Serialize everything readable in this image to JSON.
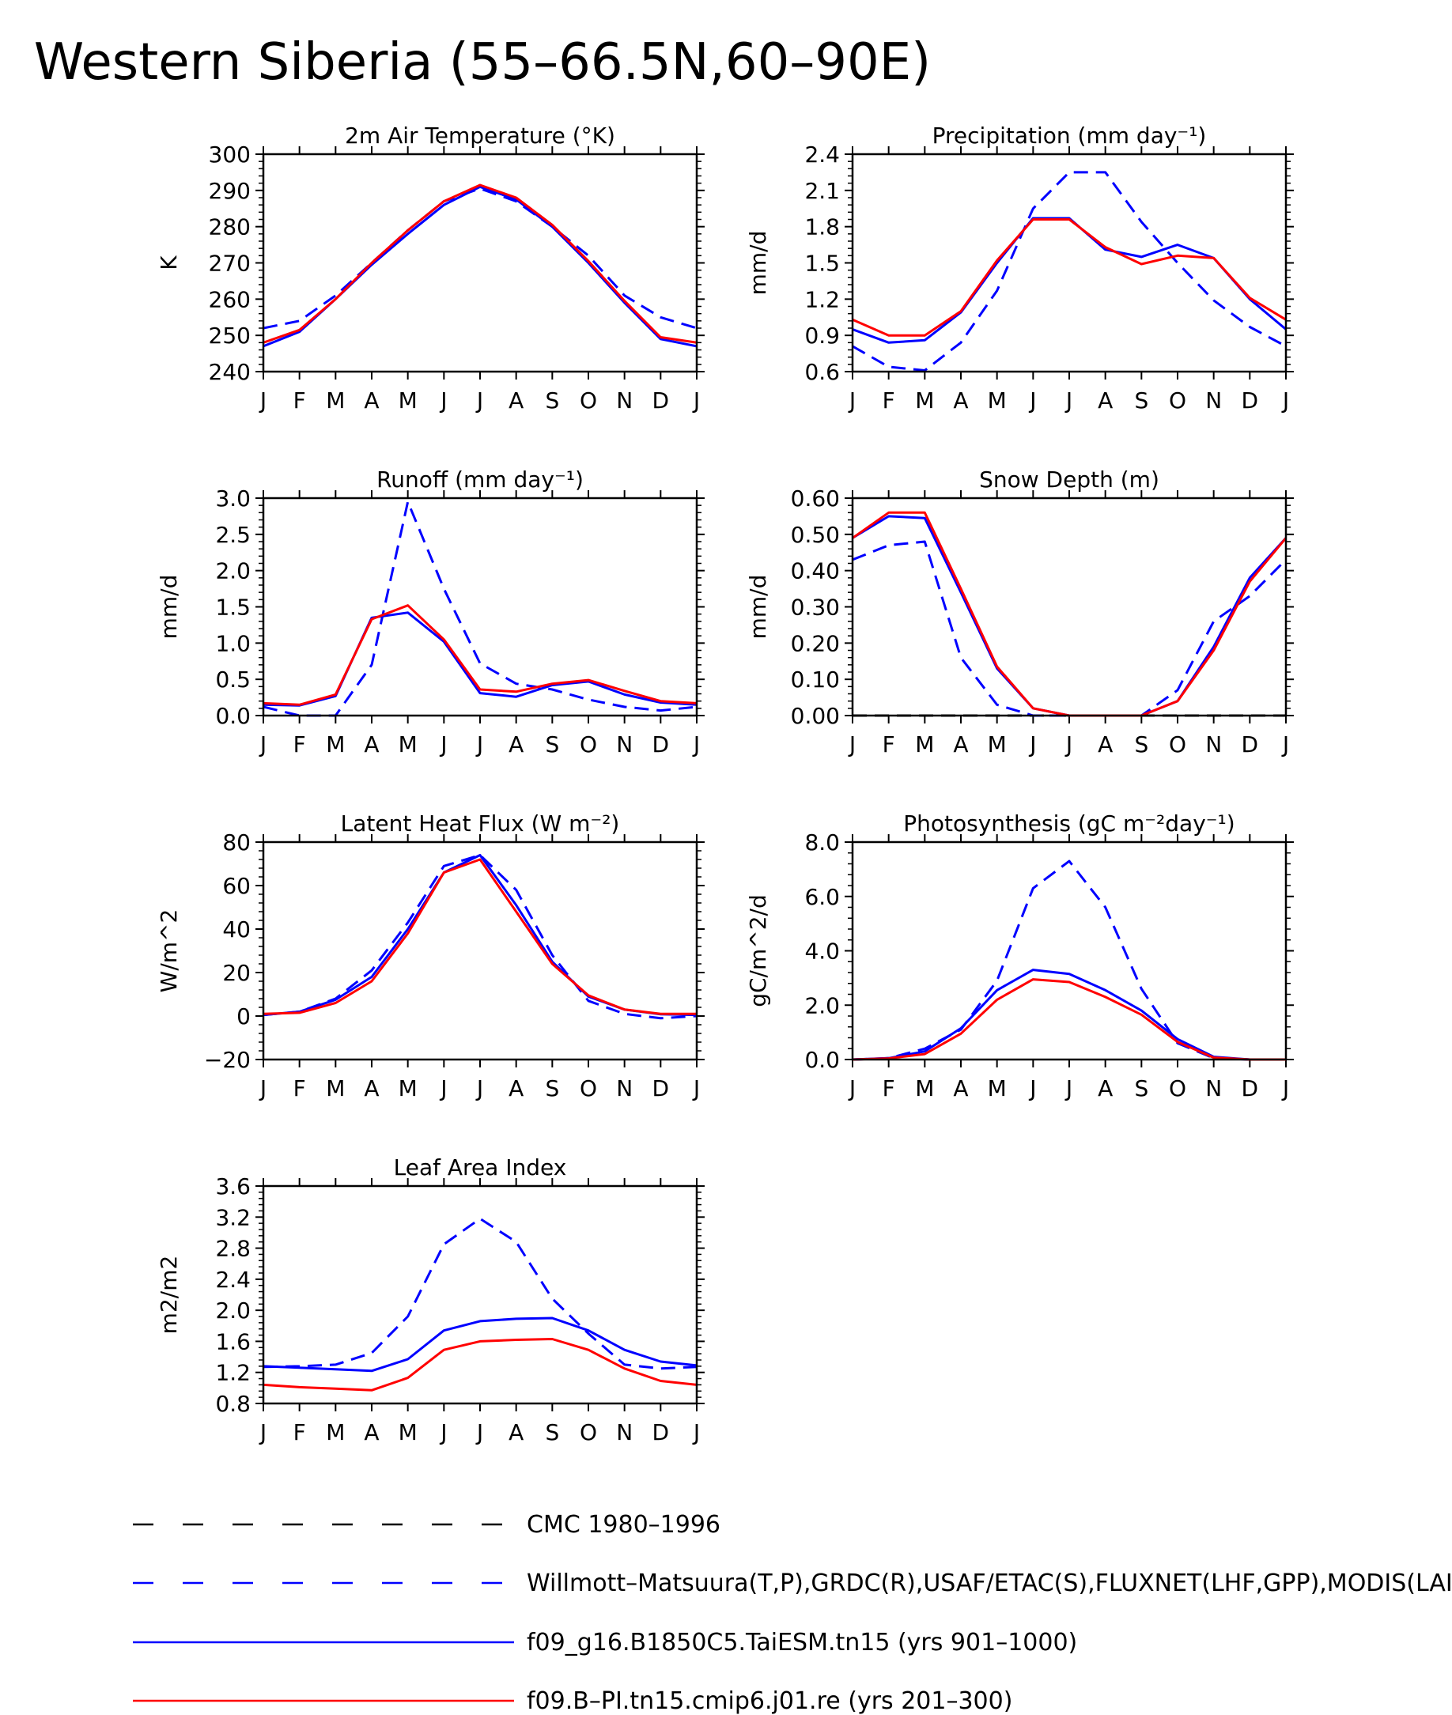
{
  "title": "Western Siberia (55–66.5N,60–90E)",
  "months": [
    "J",
    "F",
    "M",
    "A",
    "M",
    "J",
    "J",
    "A",
    "S",
    "O",
    "N",
    "D",
    "J"
  ],
  "series_styles": [
    {
      "name": "CMC 1980–1996",
      "color": "#000000",
      "dash": true
    },
    {
      "name": "Willmott–Matsuura(T,P),GRDC(R),USAF/ETAC(S),FLUXNET(LHF,GPP),MODIS(LAI)",
      "color": "#0000ff",
      "dash": true
    },
    {
      "name": "f09_g16.B1850C5.TaiESM.tn15 (yrs 901–1000)",
      "color": "#0000ff",
      "dash": false
    },
    {
      "name": "f09.B–PI.tn15.cmip6.j01.re (yrs 201–300)",
      "color": "#ff0000",
      "dash": false
    }
  ],
  "legend": [
    {
      "label": "CMC 1980–1996",
      "color": "#000000",
      "dash": true
    },
    {
      "label": "Willmott–Matsuura(T,P),GRDC(R),USAF/ETAC(S),FLUXNET(LHF,GPP),MODIS(LAI)",
      "color": "#0000ff",
      "dash": true
    },
    {
      "label": "f09_g16.B1850C5.TaiESM.tn15 (yrs 901–1000)",
      "color": "#0000ff",
      "dash": false
    },
    {
      "label": "f09.B–PI.tn15.cmip6.j01.re (yrs 201–300)",
      "color": "#ff0000",
      "dash": false
    }
  ],
  "chart_data": [
    {
      "type": "line",
      "title": "2m Air Temperature (°K)",
      "ylabel": "K",
      "ylim": [
        240,
        300
      ],
      "yticks": [
        240,
        250,
        260,
        270,
        280,
        290,
        300
      ],
      "ytick_labels": [
        "240",
        "250",
        "260",
        "270",
        "280",
        "290",
        "300"
      ],
      "x": [
        "J",
        "F",
        "M",
        "A",
        "M",
        "J",
        "J",
        "A",
        "S",
        "O",
        "N",
        "D",
        "J"
      ],
      "series": [
        {
          "style": 1,
          "values": [
            252,
            254,
            261,
            270,
            279,
            287,
            290.5,
            287,
            280,
            272,
            261,
            255,
            252
          ]
        },
        {
          "style": 2,
          "values": [
            247,
            251,
            260,
            269.5,
            278,
            286,
            291,
            287.5,
            280,
            270,
            259,
            249,
            247
          ]
        },
        {
          "style": 3,
          "values": [
            248,
            251.5,
            260,
            270,
            279,
            287,
            291.5,
            288,
            280.5,
            270.5,
            259.5,
            249.5,
            248
          ]
        }
      ]
    },
    {
      "type": "line",
      "title": "Precipitation (mm day⁻¹)",
      "ylabel": "mm/d",
      "ylim": [
        0.6,
        2.4
      ],
      "yticks": [
        0.6,
        0.9,
        1.2,
        1.5,
        1.8,
        2.1,
        2.4
      ],
      "ytick_labels": [
        "0.6",
        "0.9",
        "1.2",
        "1.5",
        "1.8",
        "2.1",
        "2.4"
      ],
      "x": [
        "J",
        "F",
        "M",
        "A",
        "M",
        "J",
        "J",
        "A",
        "S",
        "O",
        "N",
        "D",
        "J"
      ],
      "series": [
        {
          "style": 1,
          "values": [
            0.81,
            0.64,
            0.61,
            0.84,
            1.27,
            1.95,
            2.25,
            2.25,
            1.84,
            1.5,
            1.19,
            0.97,
            0.81
          ]
        },
        {
          "style": 2,
          "values": [
            0.95,
            0.84,
            0.86,
            1.09,
            1.5,
            1.87,
            1.87,
            1.61,
            1.55,
            1.65,
            1.54,
            1.2,
            0.95
          ]
        },
        {
          "style": 3,
          "values": [
            1.03,
            0.9,
            0.9,
            1.1,
            1.52,
            1.86,
            1.86,
            1.63,
            1.49,
            1.56,
            1.54,
            1.21,
            1.03
          ]
        }
      ]
    },
    {
      "type": "line",
      "title": "Runoff (mm day⁻¹)",
      "ylabel": "mm/d",
      "ylim": [
        0,
        3
      ],
      "yticks": [
        0,
        0.5,
        1,
        1.5,
        2,
        2.5,
        3
      ],
      "ytick_labels": [
        "0.0",
        "0.5",
        "1.0",
        "1.5",
        "2.0",
        "2.5",
        "3.0"
      ],
      "x": [
        "J",
        "F",
        "M",
        "A",
        "M",
        "J",
        "J",
        "A",
        "S",
        "O",
        "N",
        "D",
        "J"
      ],
      "series": [
        {
          "style": 1,
          "values": [
            0.12,
            0.0,
            0.0,
            0.7,
            2.95,
            1.75,
            0.72,
            0.44,
            0.36,
            0.22,
            0.12,
            0.07,
            0.12
          ]
        },
        {
          "style": 2,
          "values": [
            0.15,
            0.14,
            0.27,
            1.35,
            1.42,
            1.02,
            0.31,
            0.26,
            0.42,
            0.47,
            0.29,
            0.18,
            0.15
          ]
        },
        {
          "style": 3,
          "values": [
            0.17,
            0.15,
            0.29,
            1.33,
            1.52,
            1.05,
            0.36,
            0.33,
            0.44,
            0.49,
            0.34,
            0.2,
            0.17
          ]
        }
      ]
    },
    {
      "type": "line",
      "title": "Snow Depth (m)",
      "ylabel": "mm/d",
      "ylim": [
        0,
        0.6
      ],
      "yticks": [
        0,
        0.1,
        0.2,
        0.3,
        0.4,
        0.5,
        0.6
      ],
      "ytick_labels": [
        "0.00",
        "0.10",
        "0.20",
        "0.30",
        "0.40",
        "0.50",
        "0.60"
      ],
      "x": [
        "J",
        "F",
        "M",
        "A",
        "M",
        "J",
        "J",
        "A",
        "S",
        "O",
        "N",
        "D",
        "J"
      ],
      "series": [
        {
          "style": 0,
          "values": [
            0,
            0,
            0,
            0,
            0,
            0,
            0,
            0,
            0,
            0,
            0,
            0,
            0
          ]
        },
        {
          "style": 1,
          "values": [
            0.43,
            0.47,
            0.48,
            0.16,
            0.03,
            0.0,
            0.0,
            0.0,
            0.0,
            0.07,
            0.26,
            0.33,
            0.43
          ]
        },
        {
          "style": 2,
          "values": [
            0.49,
            0.55,
            0.545,
            0.34,
            0.13,
            0.02,
            0.0,
            0.0,
            0.0,
            0.04,
            0.19,
            0.38,
            0.49
          ]
        },
        {
          "style": 3,
          "values": [
            0.49,
            0.56,
            0.56,
            0.35,
            0.135,
            0.02,
            0.0,
            0.0,
            0.0,
            0.04,
            0.18,
            0.37,
            0.49
          ]
        }
      ]
    },
    {
      "type": "line",
      "title": "Latent Heat Flux (W m⁻²)",
      "ylabel": "W/m^2",
      "ylim": [
        -20,
        80
      ],
      "yticks": [
        -20,
        0,
        20,
        40,
        60,
        80
      ],
      "ytick_labels": [
        "−20",
        "0",
        "20",
        "40",
        "60",
        "80"
      ],
      "x": [
        "J",
        "F",
        "M",
        "A",
        "M",
        "J",
        "J",
        "A",
        "S",
        "O",
        "N",
        "D",
        "J"
      ],
      "series": [
        {
          "style": 1,
          "values": [
            0.5,
            2,
            8,
            21,
            43,
            69,
            74,
            58,
            28,
            7,
            1,
            -1,
            0
          ]
        },
        {
          "style": 2,
          "values": [
            0.5,
            2,
            7.5,
            18,
            40,
            66,
            74,
            51,
            25,
            9,
            3,
            0.8,
            0.5
          ]
        },
        {
          "style": 3,
          "values": [
            1,
            1.5,
            6,
            16,
            38,
            66,
            72,
            48,
            24,
            9.5,
            3,
            1,
            1
          ]
        }
      ]
    },
    {
      "type": "line",
      "title": "Photosynthesis (gC m⁻²day⁻¹)",
      "ylabel": "gC/m^2/d",
      "ylim": [
        0,
        8
      ],
      "yticks": [
        0,
        2,
        4,
        6,
        8
      ],
      "ytick_labels": [
        "0.0",
        "2.0",
        "4.0",
        "6.0",
        "8.0"
      ],
      "x": [
        "J",
        "F",
        "M",
        "A",
        "M",
        "J",
        "J",
        "A",
        "S",
        "O",
        "N",
        "D",
        "J"
      ],
      "series": [
        {
          "style": 1,
          "values": [
            0,
            0.05,
            0.4,
            1.1,
            2.9,
            6.3,
            7.3,
            5.6,
            2.6,
            0.6,
            0.05,
            0,
            0
          ]
        },
        {
          "style": 2,
          "values": [
            0,
            0.05,
            0.3,
            1.15,
            2.55,
            3.3,
            3.15,
            2.55,
            1.8,
            0.75,
            0.1,
            0,
            0
          ]
        },
        {
          "style": 3,
          "values": [
            0,
            0.04,
            0.2,
            0.95,
            2.2,
            2.95,
            2.85,
            2.3,
            1.65,
            0.65,
            0.07,
            0,
            0
          ]
        }
      ]
    },
    {
      "type": "line",
      "title": "Leaf Area Index",
      "ylabel": "m2/m2",
      "ylim": [
        0.8,
        3.6
      ],
      "yticks": [
        0.8,
        1.2,
        1.6,
        2.0,
        2.4,
        2.8,
        3.2,
        3.6
      ],
      "ytick_labels": [
        "0.8",
        "1.2",
        "1.6",
        "2.0",
        "2.4",
        "2.8",
        "3.2",
        "3.6"
      ],
      "x": [
        "J",
        "F",
        "M",
        "A",
        "M",
        "J",
        "J",
        "A",
        "S",
        "O",
        "N",
        "D",
        "J"
      ],
      "series": [
        {
          "style": 1,
          "values": [
            1.27,
            1.28,
            1.3,
            1.45,
            1.92,
            2.85,
            3.18,
            2.88,
            2.15,
            1.7,
            1.3,
            1.25,
            1.27
          ]
        },
        {
          "style": 2,
          "values": [
            1.28,
            1.26,
            1.24,
            1.22,
            1.37,
            1.74,
            1.86,
            1.89,
            1.9,
            1.74,
            1.49,
            1.34,
            1.29
          ]
        },
        {
          "style": 3,
          "values": [
            1.04,
            1.01,
            0.99,
            0.97,
            1.13,
            1.49,
            1.6,
            1.62,
            1.63,
            1.49,
            1.25,
            1.09,
            1.04
          ]
        }
      ]
    }
  ]
}
